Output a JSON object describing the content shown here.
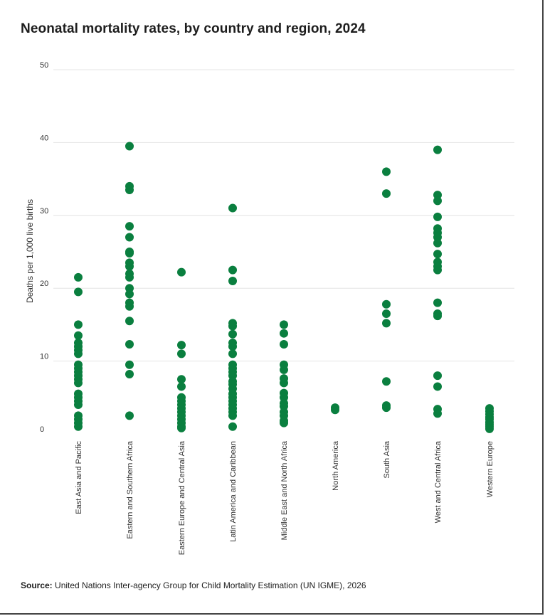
{
  "title": "Neonatal mortality rates, by country and region, 2024",
  "source": {
    "label": "Source:",
    "text": "United Nations Inter-agency Group for Child Mortality Estimation (UN IGME), 2026"
  },
  "colors": {
    "dot": "#0a7f3f",
    "grid": "#e4e4e4",
    "text": "#333333"
  },
  "chart_data": {
    "type": "scatter",
    "title": "Neonatal mortality rates, by country and region, 2024",
    "ylabel": "Deaths per 1,000 live births",
    "xlabel": "",
    "ylim": [
      0,
      50
    ],
    "yticks": [
      0,
      10,
      20,
      30,
      40,
      50
    ],
    "grid": true,
    "categories": [
      "East Asia and Pacific",
      "Eastern and Southern Africa",
      "Eastern Europe and Central Asia",
      "Latin America and Caribbean",
      "Middle East and North Africa",
      "North America",
      "South Asia",
      "West and Central Africa",
      "Western Europe"
    ],
    "values": [
      [
        21.5,
        19.5,
        15,
        13.5,
        12.5,
        12,
        11.5,
        11,
        9.5,
        9,
        8.5,
        8,
        7.5,
        7,
        5.5,
        5,
        4.5,
        4,
        2.5,
        2,
        1.5,
        1
      ],
      [
        39.5,
        34,
        33.5,
        28.5,
        27,
        25,
        24.8,
        23.5,
        23,
        22,
        21.5,
        20,
        19.2,
        18,
        17.5,
        15.5,
        12.3,
        9.5,
        8.2,
        2.5
      ],
      [
        22.2,
        12.2,
        11,
        7.5,
        6.5,
        5,
        4.5,
        4,
        3.5,
        3,
        2.5,
        2,
        1.5,
        1,
        0.8
      ],
      [
        31,
        22.5,
        21,
        15.2,
        14.8,
        13.7,
        12.5,
        12,
        11,
        9.5,
        9,
        8.5,
        8,
        7.2,
        6.8,
        6.2,
        5.5,
        5,
        4.5,
        4,
        3.5,
        3,
        2.5,
        1
      ],
      [
        15,
        13.8,
        12.3,
        9.5,
        8.8,
        7.6,
        7,
        5.6,
        5,
        4.2,
        3.8,
        3,
        2.5,
        1.8,
        1.5
      ],
      [
        3.6,
        3.3
      ],
      [
        36,
        33,
        17.8,
        16.5,
        15.2,
        7.2,
        3.9,
        3.6
      ],
      [
        39,
        32.8,
        32,
        29.8,
        28.2,
        27.6,
        27,
        26.2,
        24.7,
        23.6,
        23,
        22.5,
        18,
        16.5,
        16.2,
        8,
        6.5,
        3.4,
        2.8
      ],
      [
        3.5,
        3.1,
        2.7,
        2.3,
        2.0,
        1.6,
        1.3,
        1.0,
        0.7
      ]
    ]
  }
}
